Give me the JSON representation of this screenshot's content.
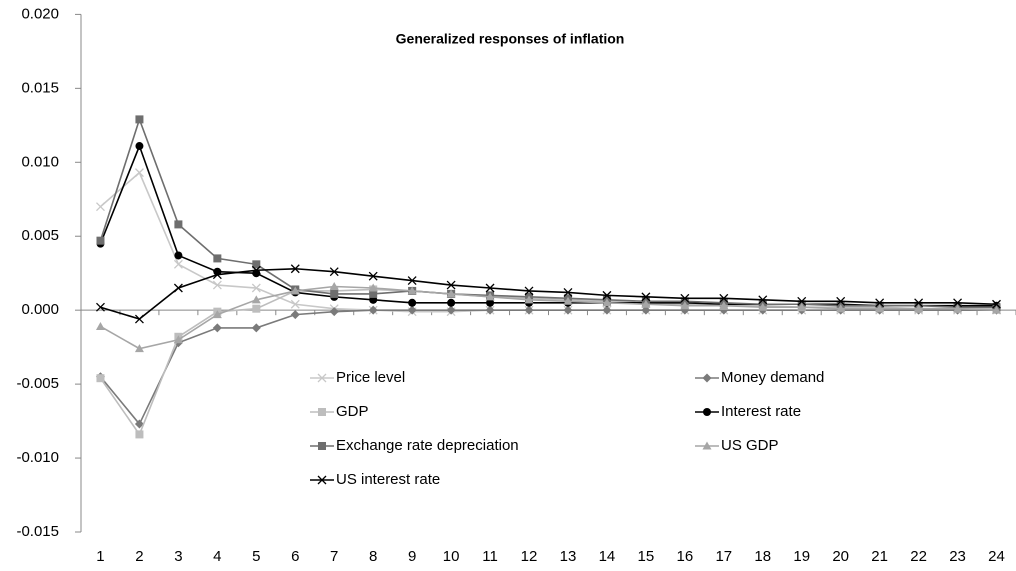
{
  "chart_data": {
    "type": "line",
    "title": "Generalized responses of inflation",
    "categories": [
      1,
      2,
      3,
      4,
      5,
      6,
      7,
      8,
      9,
      10,
      11,
      12,
      13,
      14,
      15,
      16,
      17,
      18,
      19,
      20,
      21,
      22,
      23,
      24
    ],
    "ylim": [
      -0.015,
      0.02
    ],
    "yticks": [
      {
        "value": -0.015,
        "label": "-0.015"
      },
      {
        "value": -0.01,
        "label": "-0.010"
      },
      {
        "value": -0.005,
        "label": "-0.005"
      },
      {
        "value": 0,
        "label": "0.000"
      },
      {
        "value": 0.005,
        "label": "0.005"
      },
      {
        "value": 0.01,
        "label": "0.010"
      },
      {
        "value": 0.015,
        "label": "0.015"
      },
      {
        "value": 0.02,
        "label": "0.020"
      }
    ],
    "grid": false,
    "series": [
      {
        "name": "Price level",
        "color": "#c8c8c8",
        "marker": "x",
        "values": [
          0.007,
          0.0093,
          0.0031,
          0.0017,
          0.0015,
          0.0004,
          0.0001,
          0.0,
          -0.0001,
          -0.0001,
          0,
          0,
          0,
          0,
          0,
          0,
          0,
          0,
          0,
          0,
          0,
          0,
          0,
          0
        ]
      },
      {
        "name": "Money demand",
        "color": "#7a7a7a",
        "marker": "diamond",
        "values": [
          -0.0045,
          -0.0077,
          -0.0022,
          -0.0012,
          -0.0012,
          -0.0003,
          -0.0001,
          0.0,
          0,
          0,
          0,
          0,
          0,
          0,
          0,
          0,
          0,
          0,
          0,
          0,
          0,
          0,
          0,
          0
        ]
      },
      {
        "name": "GDP",
        "color": "#bdbdbd",
        "marker": "square",
        "values": [
          -0.0046,
          -0.0084,
          -0.0018,
          -0.0001,
          0.0001,
          0.0013,
          0.0013,
          0.0014,
          0.0013,
          0.0011,
          0.0009,
          0.0008,
          0.0007,
          0.0006,
          0.0005,
          0.0004,
          0.0003,
          0.0003,
          0.0002,
          0.0002,
          0.0002,
          0.0001,
          0.0001,
          0.0001
        ]
      },
      {
        "name": "Interest rate",
        "color": "#000000",
        "marker": "circle",
        "values": [
          0.0045,
          0.0111,
          0.0037,
          0.0026,
          0.0025,
          0.0012,
          0.0009,
          0.0007,
          0.0005,
          0.0005,
          0.0005,
          0.0005,
          0.0005,
          0.0005,
          0.0005,
          0.0005,
          0.0004,
          0.0004,
          0.0004,
          0.0004,
          0.0003,
          0.0003,
          0.0003,
          0.0003
        ]
      },
      {
        "name": "Exchange rate depreciation",
        "color": "#6e6e6e",
        "marker": "square",
        "values": [
          0.0047,
          0.0129,
          0.0058,
          0.0035,
          0.0031,
          0.0014,
          0.0011,
          0.0011,
          0.0013,
          0.0011,
          0.001,
          0.0009,
          0.0008,
          0.0007,
          0.0006,
          0.0006,
          0.0005,
          0.0004,
          0.0004,
          0.0003,
          0.0003,
          0.0003,
          0.0002,
          0.0002
        ]
      },
      {
        "name": "US GDP",
        "color": "#a6a6a6",
        "marker": "triangle",
        "values": [
          -0.0011,
          -0.0026,
          -0.002,
          -0.0003,
          0.0007,
          0.0013,
          0.0016,
          0.0015,
          0.0013,
          0.0011,
          0.0009,
          0.0007,
          0.0006,
          0.0005,
          0.0004,
          0.0003,
          0.0003,
          0.0002,
          0.0002,
          0.0001,
          0.0001,
          0.0001,
          0.0001,
          0.0
        ]
      },
      {
        "name": "US interest rate",
        "color": "#000000",
        "marker": "x",
        "values": [
          0.0002,
          -0.0006,
          0.0015,
          0.0024,
          0.0027,
          0.0028,
          0.0026,
          0.0023,
          0.002,
          0.0017,
          0.0015,
          0.0013,
          0.0012,
          0.001,
          0.0009,
          0.0008,
          0.0008,
          0.0007,
          0.0006,
          0.0006,
          0.0005,
          0.0005,
          0.0005,
          0.0004
        ]
      }
    ]
  }
}
